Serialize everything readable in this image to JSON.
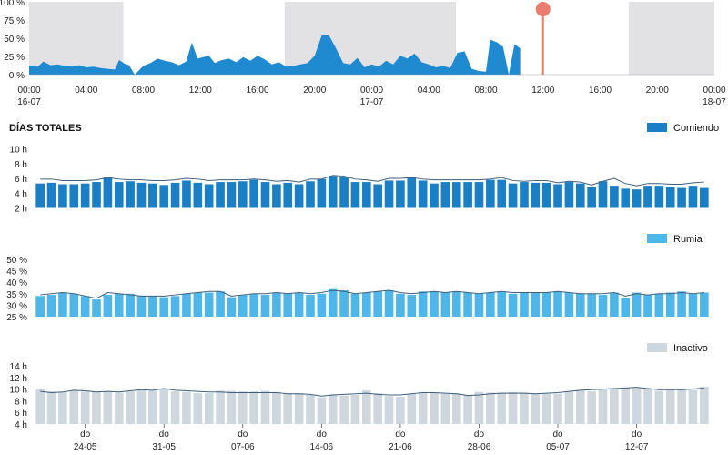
{
  "colors": {
    "night": "#e2e2e5",
    "activity": "#1f8ad0",
    "marker": "#ec7d6e",
    "comiendo": "#1b7fc6",
    "rumia": "#4fb6ea",
    "inactivo": "#cfd7de",
    "line": "#3f5f7e"
  },
  "header": {
    "title": "DÍAS TOTALES"
  },
  "chart_data": [
    {
      "type": "area",
      "yaxis_ticks": [
        "100 %",
        "75 %",
        "50 %",
        "25 %",
        "0 %"
      ],
      "ylim": [
        0,
        100
      ],
      "x_ticks": [
        {
          "h": 0,
          "line1": "00:00",
          "line2": "16-07"
        },
        {
          "h": 4,
          "line1": "04:00",
          "line2": ""
        },
        {
          "h": 8,
          "line1": "08:00",
          "line2": ""
        },
        {
          "h": 12,
          "line1": "12:00",
          "line2": ""
        },
        {
          "h": 16,
          "line1": "16:00",
          "line2": ""
        },
        {
          "h": 20,
          "line1": "20:00",
          "line2": ""
        },
        {
          "h": 24,
          "line1": "00:00",
          "line2": "17-07"
        },
        {
          "h": 28,
          "line1": "04:00",
          "line2": ""
        },
        {
          "h": 32,
          "line1": "08:00",
          "line2": ""
        },
        {
          "h": 36,
          "line1": "12:00",
          "line2": ""
        },
        {
          "h": 40,
          "line1": "16:00",
          "line2": ""
        },
        {
          "h": 44,
          "line1": "20:00",
          "line2": ""
        },
        {
          "h": 48,
          "line1": "00:00",
          "line2": "18-07"
        }
      ],
      "xlim_hours": [
        0,
        48
      ],
      "night_bands_hours": [
        [
          0,
          6.6
        ],
        [
          17.9,
          29.9
        ],
        [
          42.0,
          48.0
        ]
      ],
      "current_time_hours": 36.0,
      "activity": [
        [
          0,
          12
        ],
        [
          0.6,
          11
        ],
        [
          1.0,
          18
        ],
        [
          1.5,
          13
        ],
        [
          2.0,
          14
        ],
        [
          2.5,
          12
        ],
        [
          3.0,
          11
        ],
        [
          3.5,
          13
        ],
        [
          4.0,
          10
        ],
        [
          4.5,
          11
        ],
        [
          5.0,
          9
        ],
        [
          5.5,
          8
        ],
        [
          6.0,
          7
        ],
        [
          6.3,
          20
        ],
        [
          6.7,
          15
        ],
        [
          7.0,
          13
        ],
        [
          7.4,
          0
        ],
        [
          8.0,
          12
        ],
        [
          8.5,
          16
        ],
        [
          9.0,
          22
        ],
        [
          9.5,
          19
        ],
        [
          10.0,
          17
        ],
        [
          10.5,
          13
        ],
        [
          11.0,
          18
        ],
        [
          11.4,
          44
        ],
        [
          11.8,
          22
        ],
        [
          12.2,
          24
        ],
        [
          12.6,
          26
        ],
        [
          13.0,
          16
        ],
        [
          13.5,
          20
        ],
        [
          14.0,
          22
        ],
        [
          14.5,
          17
        ],
        [
          15.0,
          24
        ],
        [
          15.5,
          19
        ],
        [
          16.0,
          26
        ],
        [
          16.5,
          21
        ],
        [
          17.0,
          14
        ],
        [
          17.5,
          17
        ],
        [
          18.0,
          11
        ],
        [
          18.5,
          12
        ],
        [
          19.0,
          14
        ],
        [
          19.5,
          16
        ],
        [
          20.0,
          26
        ],
        [
          20.5,
          54
        ],
        [
          21.0,
          54
        ],
        [
          21.5,
          36
        ],
        [
          22.0,
          16
        ],
        [
          22.5,
          14
        ],
        [
          23.0,
          23
        ],
        [
          23.5,
          10
        ],
        [
          24.0,
          14
        ],
        [
          24.5,
          11
        ],
        [
          25.0,
          19
        ],
        [
          25.5,
          14
        ],
        [
          26.0,
          26
        ],
        [
          26.5,
          22
        ],
        [
          27.0,
          29
        ],
        [
          27.5,
          17
        ],
        [
          28.0,
          14
        ],
        [
          28.5,
          10
        ],
        [
          29.0,
          12
        ],
        [
          29.5,
          9
        ],
        [
          30.0,
          30
        ],
        [
          30.5,
          32
        ],
        [
          31.0,
          8
        ],
        [
          31.5,
          5
        ],
        [
          32.0,
          4
        ],
        [
          32.3,
          48
        ],
        [
          32.8,
          44
        ],
        [
          33.2,
          38
        ],
        [
          33.6,
          0
        ],
        [
          34.0,
          42
        ],
        [
          34.4,
          36
        ]
      ]
    },
    {
      "type": "bar",
      "series": [
        {
          "name": "Comiendo",
          "values": [
            5.3,
            5.4,
            5.2,
            5.2,
            5.3,
            5.5,
            6.1,
            5.5,
            5.6,
            5.4,
            5.3,
            5.1,
            5.4,
            5.7,
            5.4,
            5.2,
            5.5,
            5.5,
            5.6,
            5.8,
            5.5,
            5.2,
            5.4,
            5.2,
            5.6,
            5.9,
            6.3,
            6.2,
            5.5,
            5.5,
            5.2,
            5.7,
            5.7,
            6.1,
            5.7,
            5.3,
            5.5,
            5.5,
            5.5,
            5.5,
            5.8,
            5.8,
            5.3,
            5.5,
            5.4,
            5.4,
            5.2,
            5.5,
            5.3,
            4.9,
            5.6,
            5.0,
            4.6,
            4.5,
            5.0,
            5.0,
            4.8,
            4.7,
            5.0,
            4.7
          ]
        }
      ],
      "trend": [
        5.9,
        5.9,
        5.7,
        5.7,
        5.7,
        5.8,
        6.1,
        5.9,
        5.8,
        5.8,
        5.7,
        5.7,
        5.8,
        6.0,
        5.9,
        5.7,
        5.8,
        5.8,
        5.8,
        5.9,
        5.8,
        5.6,
        5.7,
        5.5,
        5.9,
        5.9,
        6.4,
        6.3,
        5.9,
        5.8,
        5.6,
        6.0,
        6.0,
        6.1,
        5.9,
        5.8,
        5.8,
        5.8,
        5.8,
        5.8,
        5.9,
        6.1,
        5.7,
        5.6,
        5.7,
        5.7,
        5.4,
        5.6,
        5.5,
        5.1,
        5.6,
        6.0,
        5.3,
        5.0,
        5.3,
        5.3,
        5.2,
        5.2,
        5.4,
        5.5
      ],
      "yaxis_ticks": [
        "10 h",
        "8 h",
        "6 h",
        "4 h",
        "2 h"
      ],
      "ylim": [
        2,
        10
      ]
    },
    {
      "type": "bar",
      "series": [
        {
          "name": "Rumia",
          "values": [
            34,
            34.5,
            35.5,
            35,
            34,
            32.5,
            34.5,
            35,
            35,
            34,
            34,
            33.5,
            34,
            35,
            35.5,
            35.5,
            36,
            33.5,
            34.5,
            35,
            34.5,
            35.5,
            35,
            35.5,
            34.5,
            35,
            37,
            36.5,
            35,
            35.5,
            36,
            36.5,
            35,
            34.5,
            36,
            36,
            35.5,
            36,
            35.5,
            35,
            35.5,
            36,
            35,
            35.5,
            35.5,
            35.5,
            36,
            35.5,
            35,
            35,
            34.5,
            35.5,
            33,
            35.5,
            34.5,
            35,
            35.5,
            36,
            35,
            35.5
          ]
        }
      ],
      "trend": [
        34.5,
        35,
        35.5,
        35,
        34,
        33,
        35.5,
        35,
        34.5,
        34,
        34,
        34,
        34.5,
        35,
        35.5,
        36,
        36,
        34,
        34.5,
        35,
        35,
        35.5,
        35,
        35.5,
        35,
        35.5,
        36.5,
        36,
        35,
        35.5,
        36,
        36.5,
        35.5,
        35,
        35.5,
        36,
        35.5,
        36,
        35.5,
        35,
        35.5,
        36,
        35.5,
        35.5,
        35.5,
        35.5,
        36,
        35.5,
        35,
        35,
        35,
        35.5,
        34,
        35,
        34.5,
        35,
        35,
        35.5,
        35,
        35.5
      ],
      "yaxis_ticks": [
        "50 %",
        "45 %",
        "40 %",
        "35 %",
        "30 %",
        "25 %"
      ],
      "ylim": [
        25,
        50
      ]
    },
    {
      "type": "bar",
      "series": [
        {
          "name": "Inactivo",
          "values": [
            10,
            9.6,
            9.5,
            9.8,
            9.6,
            9.6,
            9.6,
            9.4,
            9.6,
            9.9,
            9.7,
            10,
            9.6,
            9.5,
            9.3,
            9.3,
            9.7,
            9.7,
            9.6,
            9.6,
            9.7,
            9.5,
            9.3,
            9.3,
            9.0,
            8.6,
            9.1,
            8.9,
            9.0,
            9.8,
            9.3,
            8.8,
            8.7,
            9.2,
            9.5,
            9.4,
            9.2,
            9.3,
            8.9,
            9.5,
            9.4,
            9.4,
            9.5,
            9.4,
            9.3,
            9.2,
            9.2,
            9.6,
            9.8,
            9.6,
            10.0,
            10.0,
            10.3,
            10.2,
            10.1,
            9.7,
            9.9,
            10.0,
            9.8,
            10.4
          ]
        }
      ],
      "trend": [
        9.6,
        9.4,
        9.5,
        9.8,
        9.7,
        9.5,
        9.6,
        9.5,
        9.7,
        9.9,
        9.8,
        10.1,
        9.8,
        9.7,
        9.6,
        9.5,
        9.5,
        9.4,
        9.4,
        9.4,
        9.4,
        9.4,
        9.2,
        9.2,
        9.1,
        8.8,
        9.0,
        9.1,
        9.2,
        9.3,
        9.1,
        9.0,
        9.0,
        9.2,
        9.4,
        9.4,
        9.3,
        9.2,
        8.9,
        9.0,
        9.2,
        9.3,
        9.3,
        9.3,
        9.2,
        9.3,
        9.4,
        9.6,
        9.8,
        9.9,
        10.0,
        10.1,
        10.2,
        10.3,
        10.1,
        9.9,
        9.9,
        9.9,
        10.0,
        10.2
      ],
      "yaxis_ticks": [
        "14 h",
        "12 h",
        "10 h",
        "8 h",
        "6 h",
        "4 h"
      ],
      "ylim": [
        4,
        14
      ],
      "x_ticks": [
        {
          "index": 4,
          "line1": "do",
          "line2": "24-05"
        },
        {
          "index": 11,
          "line1": "do",
          "line2": "31-05"
        },
        {
          "index": 18,
          "line1": "do",
          "line2": "07-06"
        },
        {
          "index": 25,
          "line1": "do",
          "line2": "14-06"
        },
        {
          "index": 32,
          "line1": "do",
          "line2": "21-06"
        },
        {
          "index": 39,
          "line1": "do",
          "line2": "28-06"
        },
        {
          "index": 46,
          "line1": "do",
          "line2": "05-07"
        },
        {
          "index": 53,
          "line1": "do",
          "line2": "12-07"
        }
      ]
    }
  ]
}
